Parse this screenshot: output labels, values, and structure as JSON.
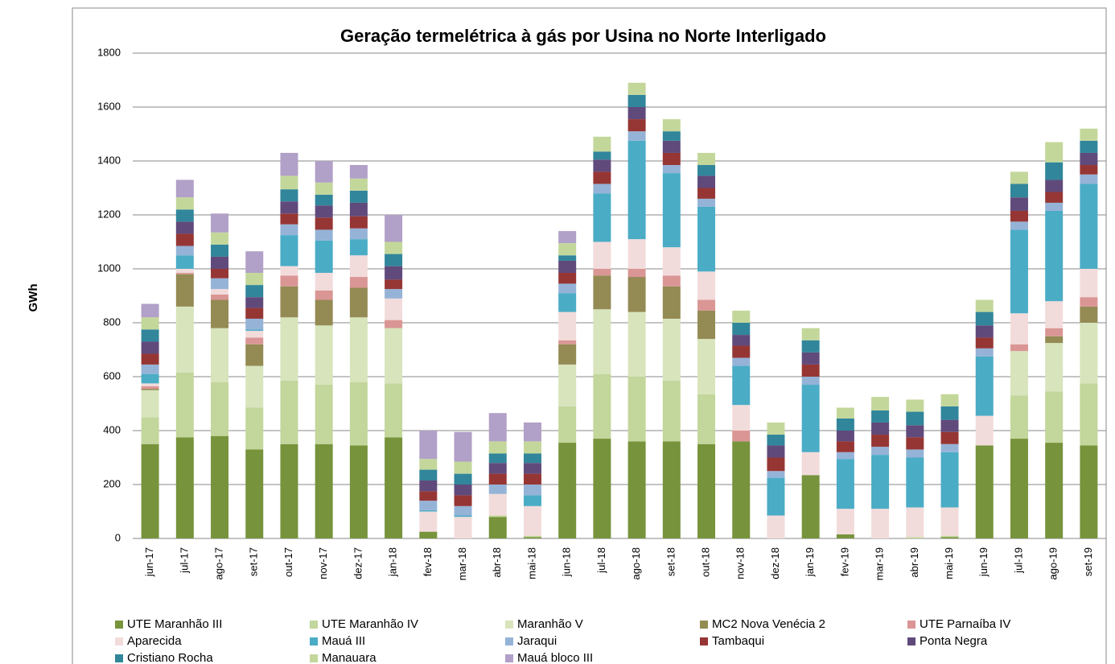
{
  "chart_data": {
    "type": "stacked_bar",
    "title": "Geração termelétrica à gás por Usina no Norte Interligado",
    "y_label": "GWh",
    "categories": [
      "jun-17",
      "jul-17",
      "ago-17",
      "set-17",
      "out-17",
      "nov-17",
      "dez-17",
      "jan-18",
      "fev-18",
      "mar-18",
      "abr-18",
      "mai-18",
      "jun-18",
      "jul-18",
      "ago-18",
      "set-18",
      "out-18",
      "nov-18",
      "dez-18",
      "jan-19",
      "fev-19",
      "mar-19",
      "abr-19",
      "mai-19",
      "jun-19",
      "jul-19",
      "ago-19",
      "set-19"
    ],
    "ylim": [
      0,
      1800
    ],
    "yticks": [
      0,
      200,
      400,
      600,
      800,
      1000,
      1200,
      1400,
      1600,
      1800
    ],
    "grid": true,
    "legend": "bottom",
    "series": [
      {
        "name": "UTE Maranhão III",
        "color": "#77933c",
        "values": [
          350,
          375,
          380,
          330,
          350,
          350,
          345,
          375,
          25,
          0,
          80,
          5,
          355,
          370,
          360,
          360,
          350,
          360,
          0,
          235,
          15,
          0,
          0,
          5,
          345,
          370,
          355,
          345
        ]
      },
      {
        "name": "UTE Maranhão IV",
        "color": "#c3d69b",
        "values": [
          100,
          240,
          200,
          155,
          235,
          220,
          235,
          200,
          0,
          0,
          5,
          5,
          135,
          240,
          240,
          225,
          185,
          0,
          0,
          0,
          0,
          0,
          5,
          5,
          0,
          160,
          190,
          230
        ]
      },
      {
        "name": "Maranhão V",
        "color": "#d8e4bc",
        "values": [
          100,
          245,
          200,
          155,
          235,
          220,
          240,
          205,
          0,
          0,
          0,
          0,
          155,
          240,
          240,
          230,
          205,
          0,
          0,
          0,
          0,
          0,
          0,
          0,
          0,
          165,
          180,
          225
        ]
      },
      {
        "name": "MC2 Nova Venécia 2",
        "color": "#948a54",
        "values": [
          5,
          120,
          105,
          80,
          115,
          95,
          110,
          0,
          0,
          0,
          0,
          0,
          75,
          125,
          130,
          120,
          105,
          0,
          0,
          0,
          0,
          0,
          0,
          0,
          0,
          0,
          25,
          60
        ]
      },
      {
        "name": "UTE Parnaíba IV",
        "color": "#da9694",
        "values": [
          10,
          5,
          20,
          25,
          40,
          35,
          40,
          30,
          0,
          0,
          0,
          0,
          15,
          25,
          30,
          40,
          40,
          40,
          0,
          0,
          0,
          0,
          0,
          0,
          0,
          25,
          30,
          35
        ]
      },
      {
        "name": "Aparecida",
        "color": "#f2dcdb",
        "values": [
          10,
          15,
          20,
          25,
          35,
          65,
          80,
          80,
          75,
          80,
          80,
          110,
          105,
          100,
          110,
          105,
          105,
          95,
          85,
          85,
          95,
          110,
          110,
          105,
          110,
          115,
          100,
          105
        ]
      },
      {
        "name": "Mauá III",
        "color": "#4bacc6",
        "values": [
          35,
          50,
          0,
          5,
          115,
          120,
          60,
          0,
          5,
          5,
          0,
          40,
          70,
          180,
          365,
          275,
          240,
          145,
          140,
          250,
          185,
          200,
          185,
          205,
          220,
          310,
          335,
          315
        ]
      },
      {
        "name": "Jaraqui",
        "color": "#95b3d7",
        "values": [
          35,
          35,
          40,
          40,
          40,
          40,
          40,
          35,
          35,
          35,
          35,
          40,
          35,
          35,
          35,
          30,
          30,
          30,
          25,
          30,
          25,
          30,
          30,
          30,
          30,
          30,
          30,
          35
        ]
      },
      {
        "name": "Tambaqui",
        "color": "#963634",
        "values": [
          40,
          45,
          35,
          40,
          40,
          45,
          45,
          35,
          35,
          40,
          40,
          40,
          40,
          45,
          45,
          45,
          40,
          45,
          50,
          45,
          40,
          45,
          45,
          45,
          40,
          40,
          40,
          35
        ]
      },
      {
        "name": "Ponta Negra",
        "color": "#604a7b",
        "values": [
          45,
          45,
          45,
          40,
          45,
          45,
          50,
          50,
          40,
          40,
          40,
          40,
          45,
          45,
          45,
          45,
          45,
          40,
          45,
          45,
          40,
          45,
          45,
          45,
          45,
          50,
          45,
          45
        ]
      },
      {
        "name": "Cristiano Rocha",
        "color": "#31869b",
        "values": [
          45,
          45,
          45,
          45,
          45,
          40,
          45,
          45,
          40,
          40,
          35,
          35,
          20,
          30,
          45,
          35,
          40,
          45,
          40,
          45,
          45,
          45,
          50,
          50,
          50,
          50,
          65,
          45
        ]
      },
      {
        "name": "Manauara",
        "color": "#c4d79b",
        "values": [
          45,
          45,
          45,
          45,
          50,
          45,
          45,
          45,
          40,
          45,
          45,
          45,
          45,
          55,
          45,
          45,
          45,
          45,
          45,
          45,
          40,
          50,
          45,
          45,
          45,
          45,
          75,
          45
        ]
      },
      {
        "name": "Mauá bloco III",
        "color": "#b1a0c7",
        "values": [
          50,
          65,
          70,
          80,
          85,
          80,
          50,
          100,
          105,
          110,
          105,
          70,
          45,
          0,
          0,
          0,
          0,
          0,
          0,
          0,
          0,
          0,
          0,
          0,
          0,
          0,
          0,
          0
        ]
      }
    ]
  }
}
